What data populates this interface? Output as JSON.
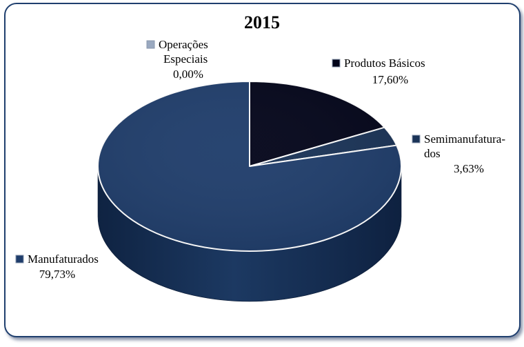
{
  "chart_data": {
    "type": "pie",
    "title": "2015",
    "slices": [
      {
        "label_lines": [
          "Produtos Básicos"
        ],
        "value_label": "17,60%",
        "value": 17.6,
        "color": "#03051a"
      },
      {
        "label_lines": [
          "Semimanufatura-",
          "dos"
        ],
        "value_label": "3,63%",
        "value": 3.63,
        "color": "#1a3357"
      },
      {
        "label_lines": [
          "Manufaturados"
        ],
        "value_label": "79,73%",
        "value": 79.73,
        "color": "#1f3d6b"
      },
      {
        "label_lines": [
          "Operações",
          "Especiais"
        ],
        "value_label": "0,00%",
        "value": 0.0,
        "color": "#9aa9c0"
      }
    ],
    "legend": "none"
  }
}
